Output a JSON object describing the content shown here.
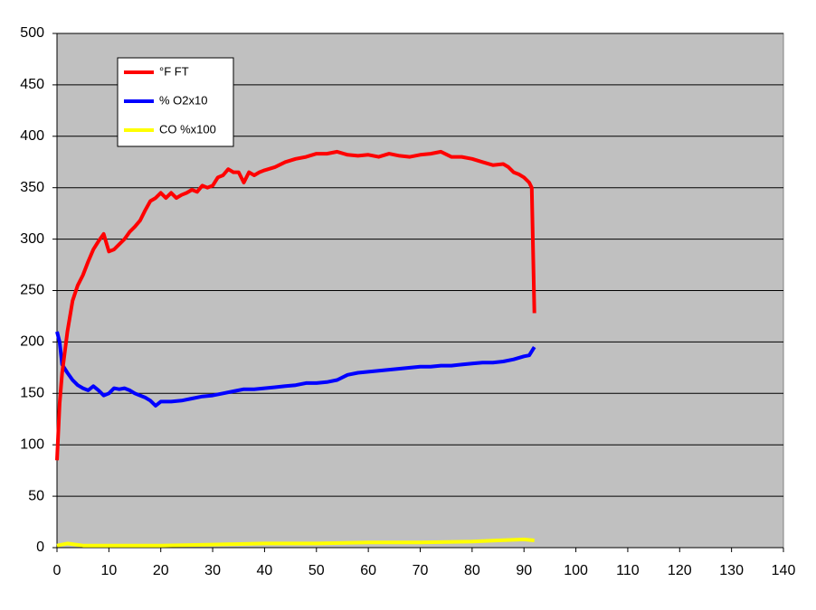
{
  "chart_data": {
    "type": "line",
    "xlim": [
      0,
      140
    ],
    "xticks": [
      0,
      10,
      20,
      30,
      40,
      50,
      60,
      70,
      80,
      90,
      100,
      110,
      120,
      130,
      140
    ],
    "ylim": [
      0,
      500
    ],
    "yticks": [
      0,
      50,
      100,
      150,
      200,
      250,
      300,
      350,
      400,
      450,
      500
    ],
    "grid": true,
    "legend": "upper left",
    "series": [
      {
        "name": "°F FT",
        "color": "#ff0000",
        "x": [
          0,
          0.5,
          1,
          2,
          3,
          4,
          5,
          6,
          7,
          8,
          9,
          10,
          11,
          12,
          13,
          14,
          15,
          16,
          17,
          18,
          19,
          20,
          21,
          22,
          23,
          24,
          25,
          26,
          27,
          28,
          29,
          30,
          31,
          32,
          33,
          34,
          35,
          36,
          37,
          38,
          39,
          40,
          42,
          44,
          46,
          48,
          50,
          52,
          54,
          56,
          58,
          60,
          62,
          64,
          66,
          68,
          70,
          72,
          74,
          76,
          78,
          80,
          82,
          84,
          86,
          87,
          88,
          89,
          90,
          91,
          91.5,
          92
        ],
        "values": [
          85,
          140,
          170,
          210,
          240,
          255,
          265,
          278,
          290,
          298,
          305,
          288,
          290,
          295,
          300,
          307,
          312,
          318,
          328,
          337,
          340,
          345,
          340,
          345,
          340,
          343,
          345,
          348,
          346,
          352,
          350,
          352,
          360,
          362,
          368,
          365,
          365,
          355,
          365,
          362,
          365,
          367,
          370,
          375,
          378,
          380,
          383,
          383,
          385,
          382,
          381,
          382,
          380,
          383,
          381,
          380,
          382,
          383,
          385,
          380,
          380,
          378,
          375,
          372,
          373,
          370,
          365,
          363,
          360,
          355,
          350,
          228
        ]
      },
      {
        "name": "% O2x10",
        "color": "#0000ff",
        "x": [
          0,
          0.5,
          1,
          2,
          3,
          4,
          5,
          6,
          7,
          8,
          9,
          10,
          11,
          12,
          13,
          14,
          15,
          16,
          17,
          18,
          19,
          20,
          22,
          24,
          26,
          28,
          30,
          32,
          34,
          36,
          38,
          40,
          42,
          44,
          46,
          48,
          50,
          52,
          54,
          56,
          58,
          60,
          62,
          64,
          66,
          68,
          70,
          72,
          74,
          76,
          78,
          80,
          82,
          84,
          86,
          88,
          90,
          91,
          92
        ],
        "values": [
          210,
          200,
          178,
          170,
          163,
          158,
          155,
          153,
          157,
          153,
          148,
          150,
          155,
          154,
          155,
          153,
          150,
          148,
          146,
          143,
          138,
          142,
          142,
          143,
          145,
          147,
          148,
          150,
          152,
          154,
          154,
          155,
          156,
          157,
          158,
          160,
          160,
          161,
          163,
          168,
          170,
          171,
          172,
          173,
          174,
          175,
          176,
          176,
          177,
          177,
          178,
          179,
          180,
          180,
          181,
          183,
          186,
          187,
          195
        ]
      },
      {
        "name": "CO %x100",
        "color": "#ffff00",
        "x": [
          0,
          2,
          5,
          10,
          20,
          30,
          40,
          50,
          60,
          70,
          80,
          85,
          90,
          92
        ],
        "values": [
          2,
          4,
          2,
          2,
          2,
          3,
          4,
          4,
          5,
          5,
          6,
          7,
          8,
          7
        ]
      }
    ]
  }
}
